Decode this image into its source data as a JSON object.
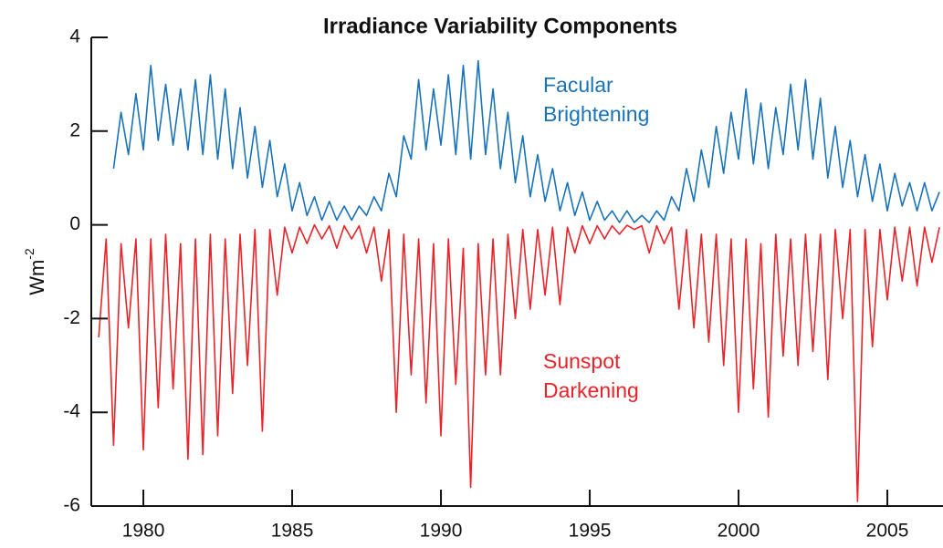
{
  "chart_data": {
    "type": "line",
    "title": "Irradiance Variability Components",
    "ylabel": {
      "base": "Wm",
      "sup": "-2"
    },
    "annotations": [
      {
        "lines": [
          "Facular",
          "Brightening"
        ],
        "color": "#1a73b8"
      },
      {
        "lines": [
          "Sunspot",
          "Darkening"
        ],
        "color": "#e8242a"
      }
    ],
    "xlim": [
      1978.25,
      2006.87
    ],
    "xticks": [
      1980,
      1985,
      1990,
      1995,
      2000,
      2005
    ],
    "ylim": [
      -6,
      4
    ],
    "yticks": [
      4,
      2,
      0,
      -2,
      -4,
      -6
    ],
    "grid": false,
    "series": [
      {
        "name": "Facular Brightening",
        "color": "#1a73b8",
        "x": [
          1979,
          1979.25,
          1979.5,
          1979.75,
          1980,
          1980.25,
          1980.5,
          1980.75,
          1981,
          1981.25,
          1981.5,
          1981.75,
          1982,
          1982.25,
          1982.5,
          1982.75,
          1983,
          1983.25,
          1983.5,
          1983.75,
          1984,
          1984.25,
          1984.5,
          1984.75,
          1985,
          1985.25,
          1985.5,
          1985.75,
          1986,
          1986.25,
          1986.5,
          1986.75,
          1987,
          1987.25,
          1987.5,
          1987.75,
          1988,
          1988.25,
          1988.5,
          1988.75,
          1989,
          1989.25,
          1989.5,
          1989.75,
          1990,
          1990.25,
          1990.5,
          1990.75,
          1991,
          1991.25,
          1991.5,
          1991.75,
          1992,
          1992.25,
          1992.5,
          1992.75,
          1993,
          1993.25,
          1993.5,
          1993.75,
          1994,
          1994.25,
          1994.5,
          1994.75,
          1995,
          1995.25,
          1995.5,
          1995.75,
          1996,
          1996.25,
          1996.5,
          1996.75,
          1997,
          1997.25,
          1997.5,
          1997.75,
          1998,
          1998.25,
          1998.5,
          1998.75,
          1999,
          1999.25,
          1999.5,
          1999.75,
          2000,
          2000.25,
          2000.5,
          2000.75,
          2001,
          2001.25,
          2001.5,
          2001.75,
          2002,
          2002.25,
          2002.5,
          2002.75,
          2003,
          2003.25,
          2003.5,
          2003.75,
          2004,
          2004.25,
          2004.5,
          2004.75,
          2005,
          2005.25,
          2005.5,
          2005.75,
          2006,
          2006.25,
          2006.5,
          2006.75
        ],
        "values": [
          1.2,
          2.4,
          1.5,
          2.8,
          1.6,
          3.4,
          1.8,
          3.0,
          1.7,
          2.9,
          1.6,
          3.1,
          1.5,
          3.2,
          1.4,
          2.9,
          1.2,
          2.5,
          1.0,
          2.1,
          0.8,
          1.8,
          0.6,
          1.3,
          0.3,
          0.9,
          0.2,
          0.6,
          0.1,
          0.5,
          0.1,
          0.4,
          0.1,
          0.4,
          0.2,
          0.6,
          0.3,
          1.1,
          0.6,
          1.9,
          1.4,
          3.1,
          1.6,
          2.9,
          1.7,
          3.2,
          1.5,
          3.4,
          1.4,
          3.5,
          1.5,
          2.9,
          1.2,
          2.4,
          0.9,
          1.9,
          0.6,
          1.5,
          0.5,
          1.2,
          0.3,
          0.9,
          0.2,
          0.7,
          0.1,
          0.5,
          0.1,
          0.3,
          0.05,
          0.3,
          0.05,
          0.2,
          0.05,
          0.3,
          0.1,
          0.6,
          0.3,
          1.2,
          0.5,
          1.6,
          0.8,
          2.1,
          1.1,
          2.4,
          1.4,
          2.9,
          1.3,
          2.6,
          1.2,
          2.5,
          1.5,
          3.0,
          1.6,
          3.1,
          1.4,
          2.7,
          1.0,
          2.1,
          0.8,
          1.8,
          0.6,
          1.5,
          0.5,
          1.3,
          0.3,
          1.1,
          0.4,
          0.9,
          0.3,
          0.9,
          0.3,
          0.7
        ]
      },
      {
        "name": "Sunspot Darkening",
        "color": "#e8242a",
        "x": [
          1978.5,
          1978.75,
          1979,
          1979.25,
          1979.5,
          1979.75,
          1980,
          1980.25,
          1980.5,
          1980.75,
          1981,
          1981.25,
          1981.5,
          1981.75,
          1982,
          1982.25,
          1982.5,
          1982.75,
          1983,
          1983.25,
          1983.5,
          1983.75,
          1984,
          1984.25,
          1984.5,
          1984.75,
          1985,
          1985.25,
          1985.5,
          1985.75,
          1986,
          1986.25,
          1986.5,
          1986.75,
          1987,
          1987.25,
          1987.5,
          1987.75,
          1988,
          1988.25,
          1988.5,
          1988.75,
          1989,
          1989.25,
          1989.5,
          1989.75,
          1990,
          1990.25,
          1990.5,
          1990.75,
          1991,
          1991.25,
          1991.5,
          1991.75,
          1992,
          1992.25,
          1992.5,
          1992.75,
          1993,
          1993.25,
          1993.5,
          1993.75,
          1994,
          1994.25,
          1994.5,
          1994.75,
          1995,
          1995.25,
          1995.5,
          1995.75,
          1996,
          1996.25,
          1996.5,
          1996.75,
          1997,
          1997.25,
          1997.5,
          1997.75,
          1998,
          1998.25,
          1998.5,
          1998.75,
          1999,
          1999.25,
          1999.5,
          1999.75,
          2000,
          2000.25,
          2000.5,
          2000.75,
          2001,
          2001.25,
          2001.5,
          2001.75,
          2002,
          2002.25,
          2002.5,
          2002.75,
          2003,
          2003.25,
          2003.5,
          2003.75,
          2004,
          2004.25,
          2004.5,
          2004.75,
          2005,
          2005.25,
          2005.5,
          2005.75,
          2006,
          2006.25,
          2006.5,
          2006.75
        ],
        "values": [
          -2.4,
          -0.3,
          -4.7,
          -0.4,
          -2.2,
          -0.3,
          -4.8,
          -0.3,
          -3.9,
          -0.2,
          -3.5,
          -0.4,
          -5.0,
          -0.3,
          -4.9,
          -0.2,
          -4.5,
          -0.3,
          -3.6,
          -0.2,
          -3.0,
          -0.1,
          -4.4,
          -0.1,
          -1.5,
          -0.05,
          -0.6,
          -0.05,
          -0.4,
          0,
          -0.3,
          -0.02,
          -0.5,
          -0.02,
          -0.3,
          -0.02,
          -0.6,
          -0.05,
          -1.2,
          -0.1,
          -4.0,
          -0.2,
          -3.2,
          -0.3,
          -3.8,
          -0.4,
          -4.5,
          -0.3,
          -3.4,
          -0.5,
          -5.6,
          -0.4,
          -3.2,
          -0.3,
          -3.2,
          -0.2,
          -2.0,
          -0.1,
          -1.8,
          -0.1,
          -1.5,
          -0.05,
          -1.7,
          -0.05,
          -0.6,
          -0.02,
          -0.4,
          -0.02,
          -0.3,
          -0.02,
          -0.2,
          -0.01,
          -0.1,
          -0.02,
          -0.6,
          -0.02,
          -0.4,
          -0.05,
          -1.8,
          -0.1,
          -2.2,
          -0.2,
          -2.5,
          -0.2,
          -3.0,
          -0.3,
          -4.0,
          -0.3,
          -3.5,
          -0.4,
          -4.1,
          -0.2,
          -2.8,
          -0.3,
          -3.0,
          -0.2,
          -2.7,
          -0.2,
          -3.3,
          -0.1,
          -2.0,
          -0.1,
          -5.9,
          -0.1,
          -2.6,
          -0.1,
          -1.6,
          -0.05,
          -1.2,
          -0.05,
          -1.3,
          -0.05,
          -0.8,
          -0.05
        ]
      }
    ]
  }
}
